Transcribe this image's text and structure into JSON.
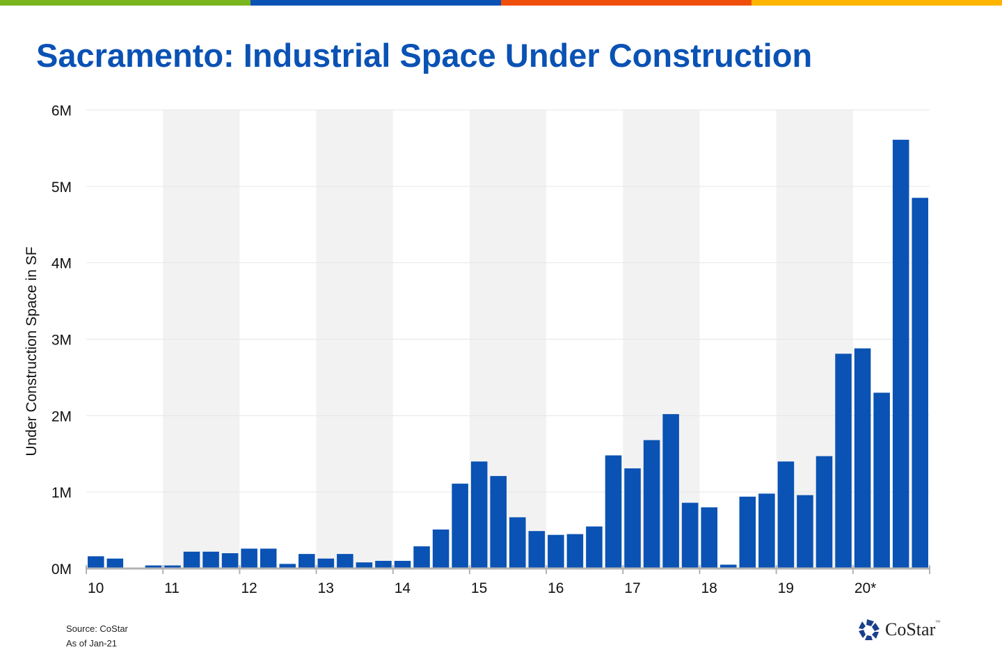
{
  "top_bar_colors": [
    "#7ab51d",
    "#0a52b4",
    "#f04e0b",
    "#ffb500"
  ],
  "title": "Sacramento: Industrial Space Under Construction",
  "footer": {
    "source": "Source: CoStar",
    "as_of": "As of Jan-21"
  },
  "logo": {
    "text": "CoStar",
    "tm": "™"
  },
  "chart_data": {
    "type": "bar",
    "title": "Sacramento: Industrial Space Under Construction",
    "xlabel": "",
    "ylabel": "Under Construction Space in SF",
    "ylim": [
      0,
      6000000
    ],
    "y_ticks": [
      0,
      1000000,
      2000000,
      3000000,
      4000000,
      5000000,
      6000000
    ],
    "y_tick_labels": [
      "0M",
      "1M",
      "2M",
      "3M",
      "4M",
      "5M",
      "6M"
    ],
    "x_tick_labels": [
      "10",
      "11",
      "12",
      "13",
      "14",
      "15",
      "16",
      "17",
      "18",
      "19",
      "20*"
    ],
    "grid": true,
    "alternating_year_shading": true,
    "bar_color": "#0a52b4",
    "categories": [
      "2010 Q1",
      "2010 Q2",
      "2010 Q3",
      "2010 Q4",
      "2011 Q1",
      "2011 Q2",
      "2011 Q3",
      "2011 Q4",
      "2012 Q1",
      "2012 Q2",
      "2012 Q3",
      "2012 Q4",
      "2013 Q1",
      "2013 Q2",
      "2013 Q3",
      "2013 Q4",
      "2014 Q1",
      "2014 Q2",
      "2014 Q3",
      "2014 Q4",
      "2015 Q1",
      "2015 Q2",
      "2015 Q3",
      "2015 Q4",
      "2016 Q1",
      "2016 Q2",
      "2016 Q3",
      "2016 Q4",
      "2017 Q1",
      "2017 Q2",
      "2017 Q3",
      "2017 Q4",
      "2018 Q1",
      "2018 Q2",
      "2018 Q3",
      "2018 Q4",
      "2019 Q1",
      "2019 Q2",
      "2019 Q3",
      "2019 Q4",
      "2020 Q1",
      "2020 Q2",
      "2020 Q3",
      "2020 Q4"
    ],
    "values": [
      160000,
      130000,
      0,
      40000,
      40000,
      220000,
      220000,
      200000,
      260000,
      260000,
      60000,
      190000,
      130000,
      190000,
      80000,
      100000,
      100000,
      290000,
      510000,
      1110000,
      1400000,
      1210000,
      670000,
      490000,
      440000,
      450000,
      550000,
      1480000,
      1310000,
      1680000,
      2020000,
      860000,
      800000,
      50000,
      940000,
      980000,
      1400000,
      960000,
      1470000,
      2810000,
      2880000,
      2300000,
      5610000,
      4850000
    ]
  }
}
